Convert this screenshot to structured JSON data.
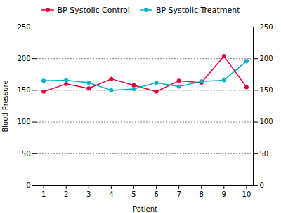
{
  "chart_data": {
    "type": "line",
    "x": [
      1,
      2,
      3,
      4,
      5,
      6,
      7,
      8,
      9,
      10
    ],
    "series": [
      {
        "name": "BP Systolic Control",
        "color": "#e8003c",
        "values": [
          148,
          160,
          153,
          168,
          158,
          148,
          165,
          162,
          204,
          155
        ]
      },
      {
        "name": "BP Systolic Treatment",
        "color": "#00b0c8",
        "values": [
          165,
          166,
          162,
          150,
          152,
          162,
          156,
          164,
          166,
          196
        ]
      }
    ],
    "xlabel": "Patient",
    "ylabel": "Blood Pressure",
    "xlim": [
      0.7,
      10.3
    ],
    "xticks": [
      1,
      2,
      3,
      4,
      5,
      6,
      7,
      8,
      9,
      10
    ],
    "ylim": [
      0,
      250
    ],
    "yticks": [
      0,
      50,
      100,
      150,
      200,
      250
    ],
    "y2lim": [
      0,
      250
    ],
    "y2ticks": [
      0,
      50,
      100,
      150,
      200,
      250
    ],
    "grid": true,
    "legend": "top",
    "marker": "circle"
  }
}
